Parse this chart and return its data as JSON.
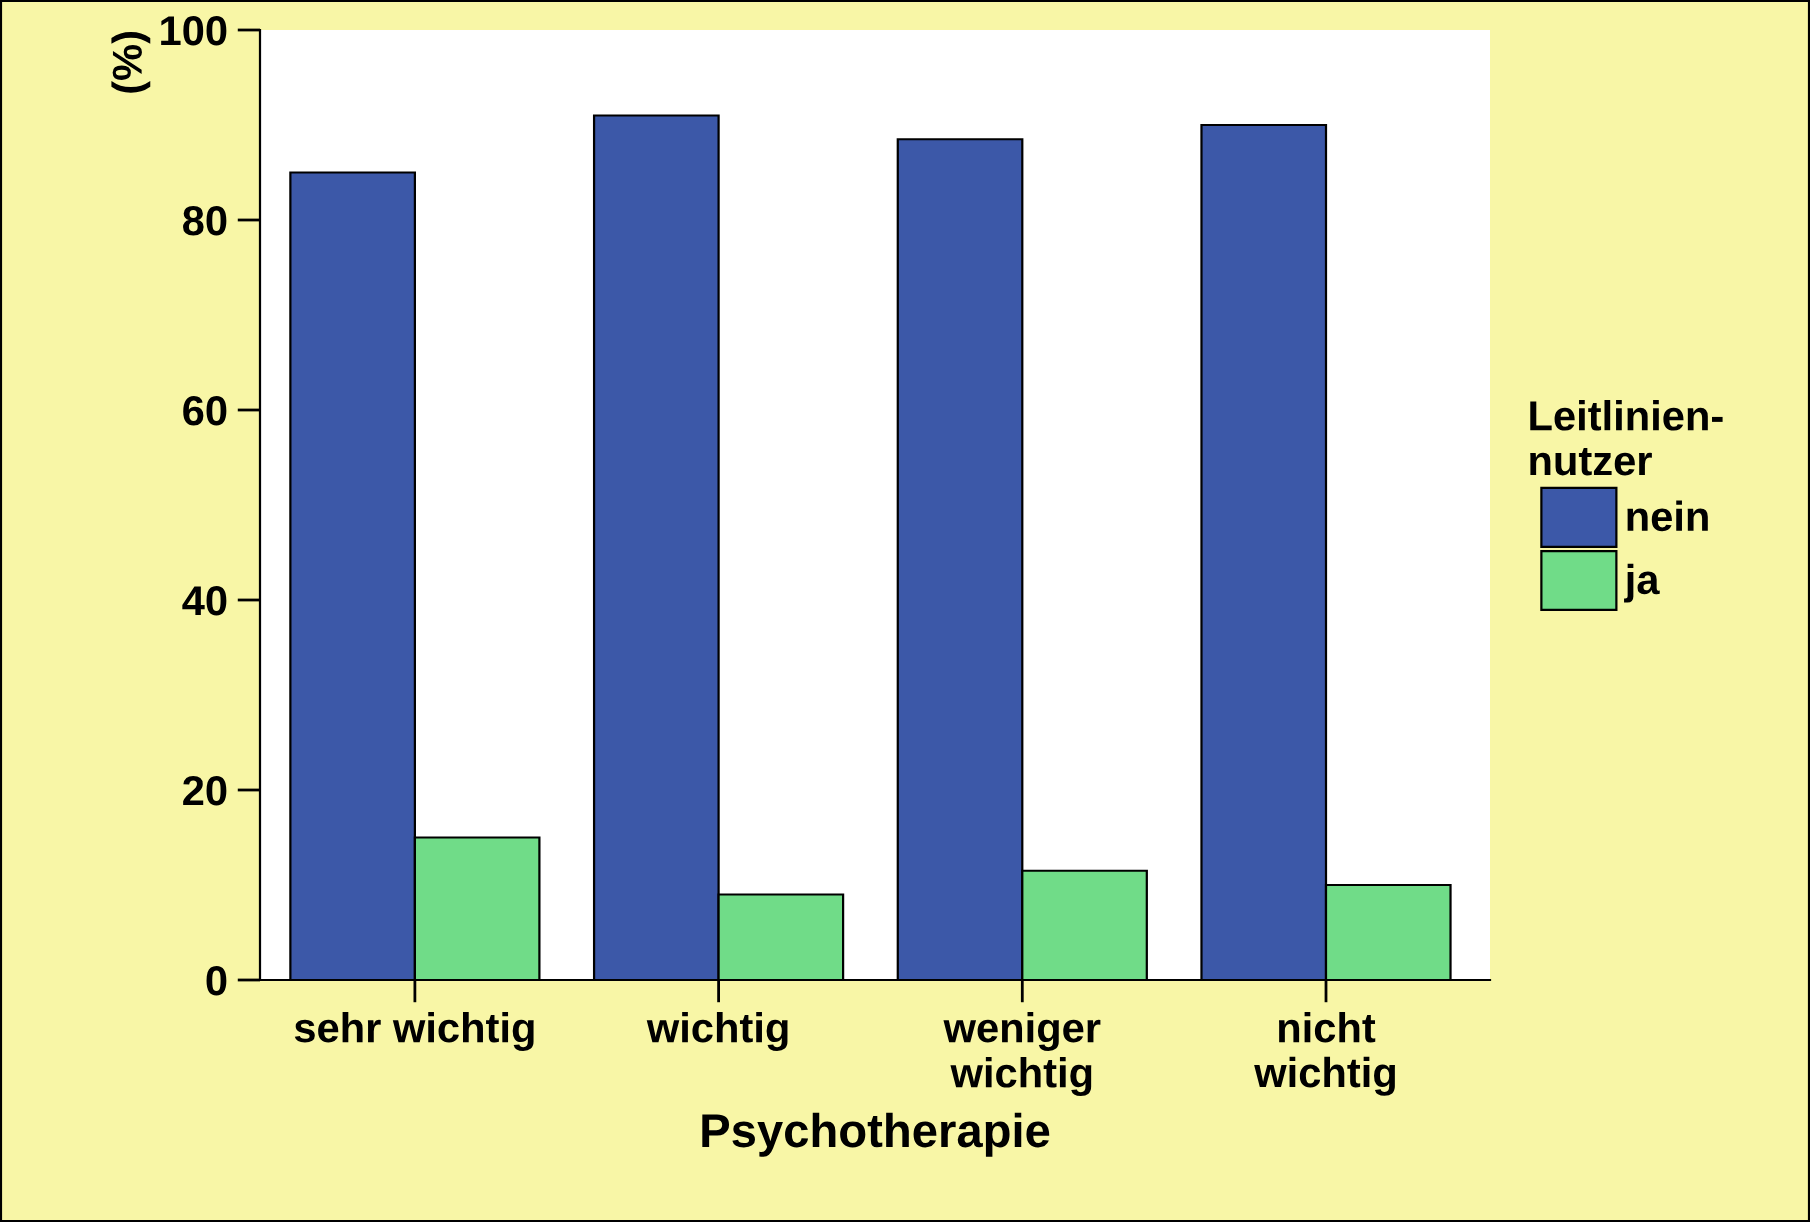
{
  "chart_data": {
    "type": "bar",
    "xlabel": "Psychotherapie",
    "ylabel": "(%)",
    "legend_title": "Leitlinien-\nnutzer",
    "categories": [
      "sehr wichtig",
      "wichtig",
      "weniger\nwichtig",
      "nicht\nwichtig"
    ],
    "series": [
      {
        "name": "nein",
        "color": "#3c58a8",
        "values": [
          85,
          91,
          88.5,
          90
        ]
      },
      {
        "name": "ja",
        "color": "#70dc88",
        "values": [
          15,
          9,
          11.5,
          10
        ]
      }
    ],
    "ylim": [
      0,
      100
    ],
    "yticks": [
      0,
      20,
      40,
      60,
      80,
      100
    ],
    "grid": false,
    "legend": "right"
  }
}
